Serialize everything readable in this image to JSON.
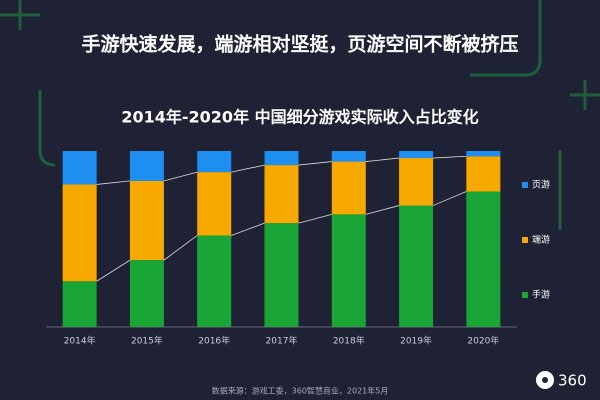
{
  "headline": "手游快速发展，端游相对坚挺，页游空间不断被挤压",
  "chart_data": {
    "type": "stacked-bar",
    "title": "2014年-2020年 中国细分游戏实际收入占比变化",
    "categories": [
      "2014年",
      "2015年",
      "2016年",
      "2017年",
      "2018年",
      "2019年",
      "2020年"
    ],
    "series": [
      {
        "name": "手游",
        "color": "#19a637",
        "values": [
          26,
          38,
          52,
          59,
          64,
          69,
          77
        ]
      },
      {
        "name": "端游",
        "color": "#f8a900",
        "values": [
          55,
          45,
          36,
          33,
          30,
          27,
          20
        ]
      },
      {
        "name": "页游",
        "color": "#1e8ff0",
        "values": [
          19,
          17,
          12,
          8,
          6,
          4,
          3
        ]
      }
    ],
    "ylim": [
      0,
      100
    ],
    "legend": "right"
  },
  "source": "数据来源：游戏工委，360智慧商业，2021年5月",
  "logo_text": "360"
}
